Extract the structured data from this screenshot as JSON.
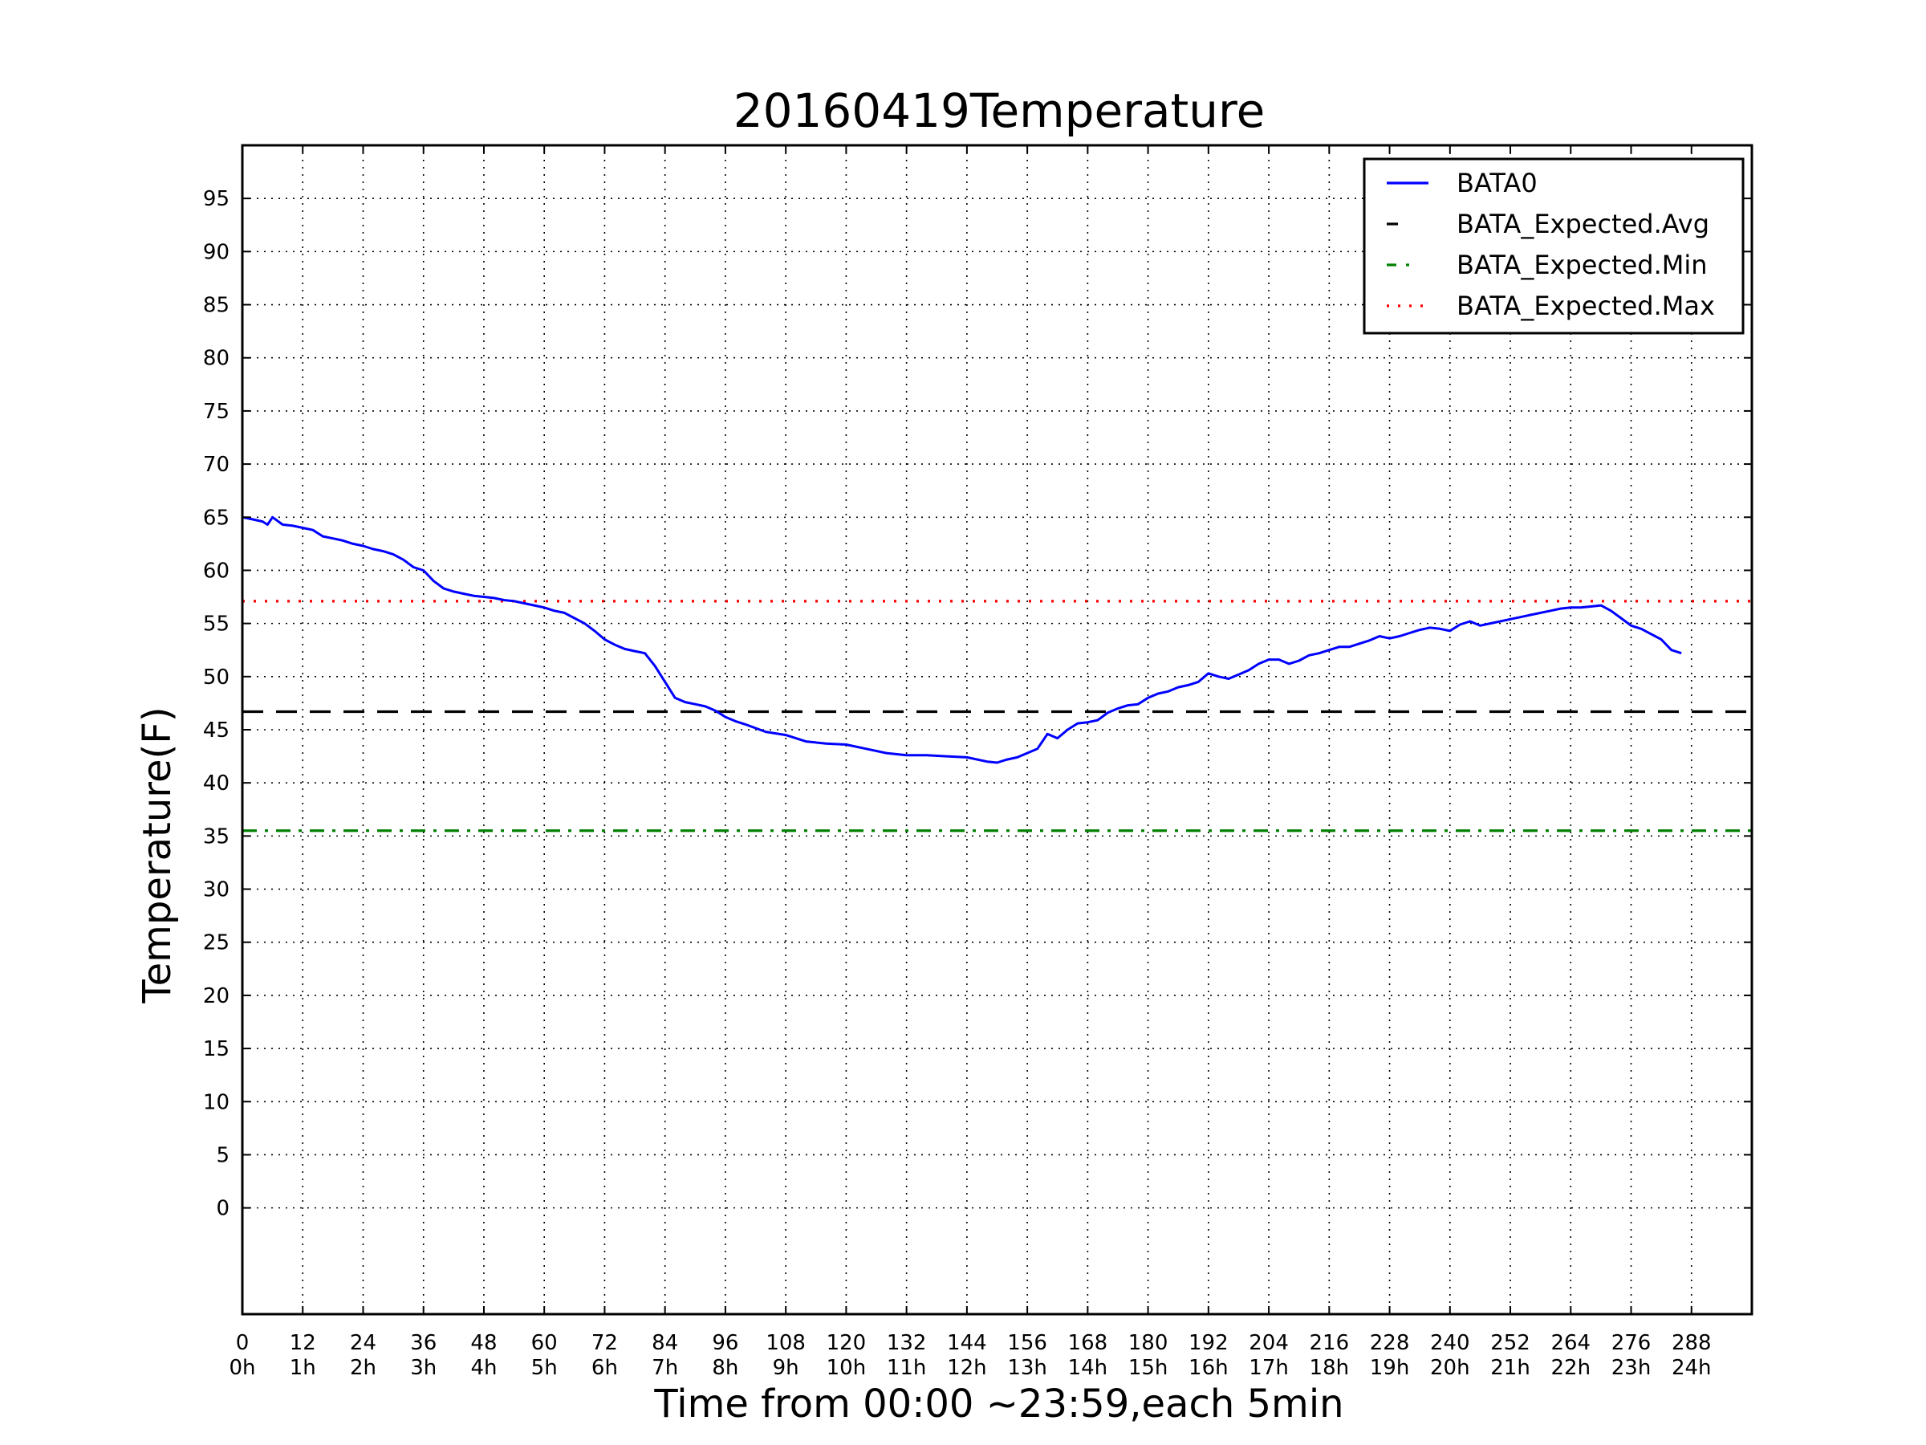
{
  "chart_data": {
    "type": "line",
    "title": "20160419Temperature",
    "xlabel": "Time from 00:00 ~23:59,each 5min",
    "ylabel": "Temperature(F)",
    "xlim": [
      0,
      300
    ],
    "ylim": [
      -10,
      100
    ],
    "grid": true,
    "legend_position": "top-right",
    "x_ticks": [
      0,
      12,
      24,
      36,
      48,
      60,
      72,
      84,
      96,
      108,
      120,
      132,
      144,
      156,
      168,
      180,
      192,
      204,
      216,
      228,
      240,
      252,
      264,
      276,
      288
    ],
    "x_tick_labels": [
      "0",
      "12",
      "24",
      "36",
      "48",
      "60",
      "72",
      "84",
      "96",
      "108",
      "120",
      "132",
      "144",
      "156",
      "168",
      "180",
      "192",
      "204",
      "216",
      "228",
      "240",
      "252",
      "264",
      "276",
      "288"
    ],
    "x_tick_sublabels": [
      "0h",
      "1h",
      "2h",
      "3h",
      "4h",
      "5h",
      "6h",
      "7h",
      "8h",
      "9h",
      "10h",
      "11h",
      "12h",
      "13h",
      "14h",
      "15h",
      "16h",
      "17h",
      "18h",
      "19h",
      "20h",
      "21h",
      "22h",
      "23h",
      "24h"
    ],
    "y_ticks": [
      0,
      5,
      10,
      15,
      20,
      25,
      30,
      35,
      40,
      45,
      50,
      55,
      60,
      65,
      70,
      75,
      80,
      85,
      90,
      95
    ],
    "y_tick_labels": [
      "0",
      "5",
      "10",
      "15",
      "20",
      "25",
      "30",
      "35",
      "40",
      "45",
      "50",
      "55",
      "60",
      "65",
      "70",
      "75",
      "80",
      "85",
      "90",
      "95"
    ],
    "series": [
      {
        "name": "BATA0",
        "color": "#0000ff",
        "style": "solid",
        "x": [
          0,
          2,
          4,
          5,
          6,
          8,
          10,
          12,
          14,
          16,
          18,
          20,
          22,
          24,
          26,
          28,
          30,
          32,
          34,
          36,
          38,
          40,
          42,
          44,
          46,
          48,
          50,
          52,
          54,
          56,
          58,
          60,
          62,
          64,
          66,
          68,
          70,
          72,
          74,
          76,
          78,
          80,
          82,
          84,
          86,
          88,
          90,
          92,
          94,
          96,
          98,
          100,
          104,
          108,
          112,
          116,
          120,
          124,
          128,
          132,
          136,
          140,
          144,
          148,
          150,
          152,
          154,
          156,
          158,
          160,
          162,
          164,
          166,
          168,
          170,
          172,
          174,
          176,
          178,
          180,
          182,
          184,
          186,
          188,
          190,
          192,
          194,
          196,
          198,
          200,
          202,
          204,
          206,
          208,
          210,
          212,
          214,
          216,
          218,
          220,
          222,
          224,
          226,
          228,
          230,
          232,
          234,
          236,
          238,
          240,
          242,
          244,
          246,
          248,
          250,
          252,
          254,
          256,
          258,
          260,
          262,
          264,
          266,
          268,
          270,
          272,
          274,
          276,
          278,
          280,
          282,
          284,
          286
        ],
        "values": [
          65.0,
          64.8,
          64.6,
          64.3,
          65.0,
          64.3,
          64.2,
          64.0,
          63.8,
          63.2,
          63.0,
          62.8,
          62.5,
          62.3,
          62.0,
          61.8,
          61.5,
          61.0,
          60.3,
          60.0,
          59.0,
          58.3,
          58.0,
          57.8,
          57.6,
          57.5,
          57.4,
          57.2,
          57.1,
          56.9,
          56.7,
          56.5,
          56.2,
          56.0,
          55.5,
          55.0,
          54.3,
          53.5,
          53.0,
          52.6,
          52.4,
          52.2,
          51.0,
          49.5,
          48.0,
          47.6,
          47.4,
          47.2,
          46.8,
          46.2,
          45.8,
          45.5,
          44.8,
          44.5,
          43.9,
          43.7,
          43.6,
          43.2,
          42.8,
          42.6,
          42.6,
          42.5,
          42.4,
          42.0,
          41.9,
          42.2,
          42.4,
          42.8,
          43.2,
          44.6,
          44.2,
          45.0,
          45.6,
          45.7,
          45.9,
          46.6,
          47.0,
          47.3,
          47.4,
          48.0,
          48.4,
          48.6,
          49.0,
          49.2,
          49.5,
          50.3,
          50.0,
          49.8,
          50.2,
          50.6,
          51.2,
          51.6,
          51.6,
          51.2,
          51.5,
          52.0,
          52.2,
          52.5,
          52.8,
          52.8,
          53.1,
          53.4,
          53.8,
          53.6,
          53.8,
          54.1,
          54.4,
          54.6,
          54.5,
          54.3,
          54.9,
          55.2,
          54.8,
          55.0,
          55.2,
          55.4,
          55.6,
          55.8,
          56.0,
          56.2,
          56.4,
          56.5,
          56.5,
          56.6,
          56.7,
          56.2,
          55.5,
          54.8,
          54.5,
          54.0,
          53.5,
          52.5,
          52.2
        ]
      },
      {
        "name": "BATA_Expected.Avg",
        "color": "#000000",
        "style": "dashed",
        "constant": 46.7
      },
      {
        "name": "BATA_Expected.Min",
        "color": "#008000",
        "style": "dashdot",
        "constant": 35.5
      },
      {
        "name": "BATA_Expected.Max",
        "color": "#ff0000",
        "style": "dotted",
        "constant": 57.1
      }
    ]
  }
}
